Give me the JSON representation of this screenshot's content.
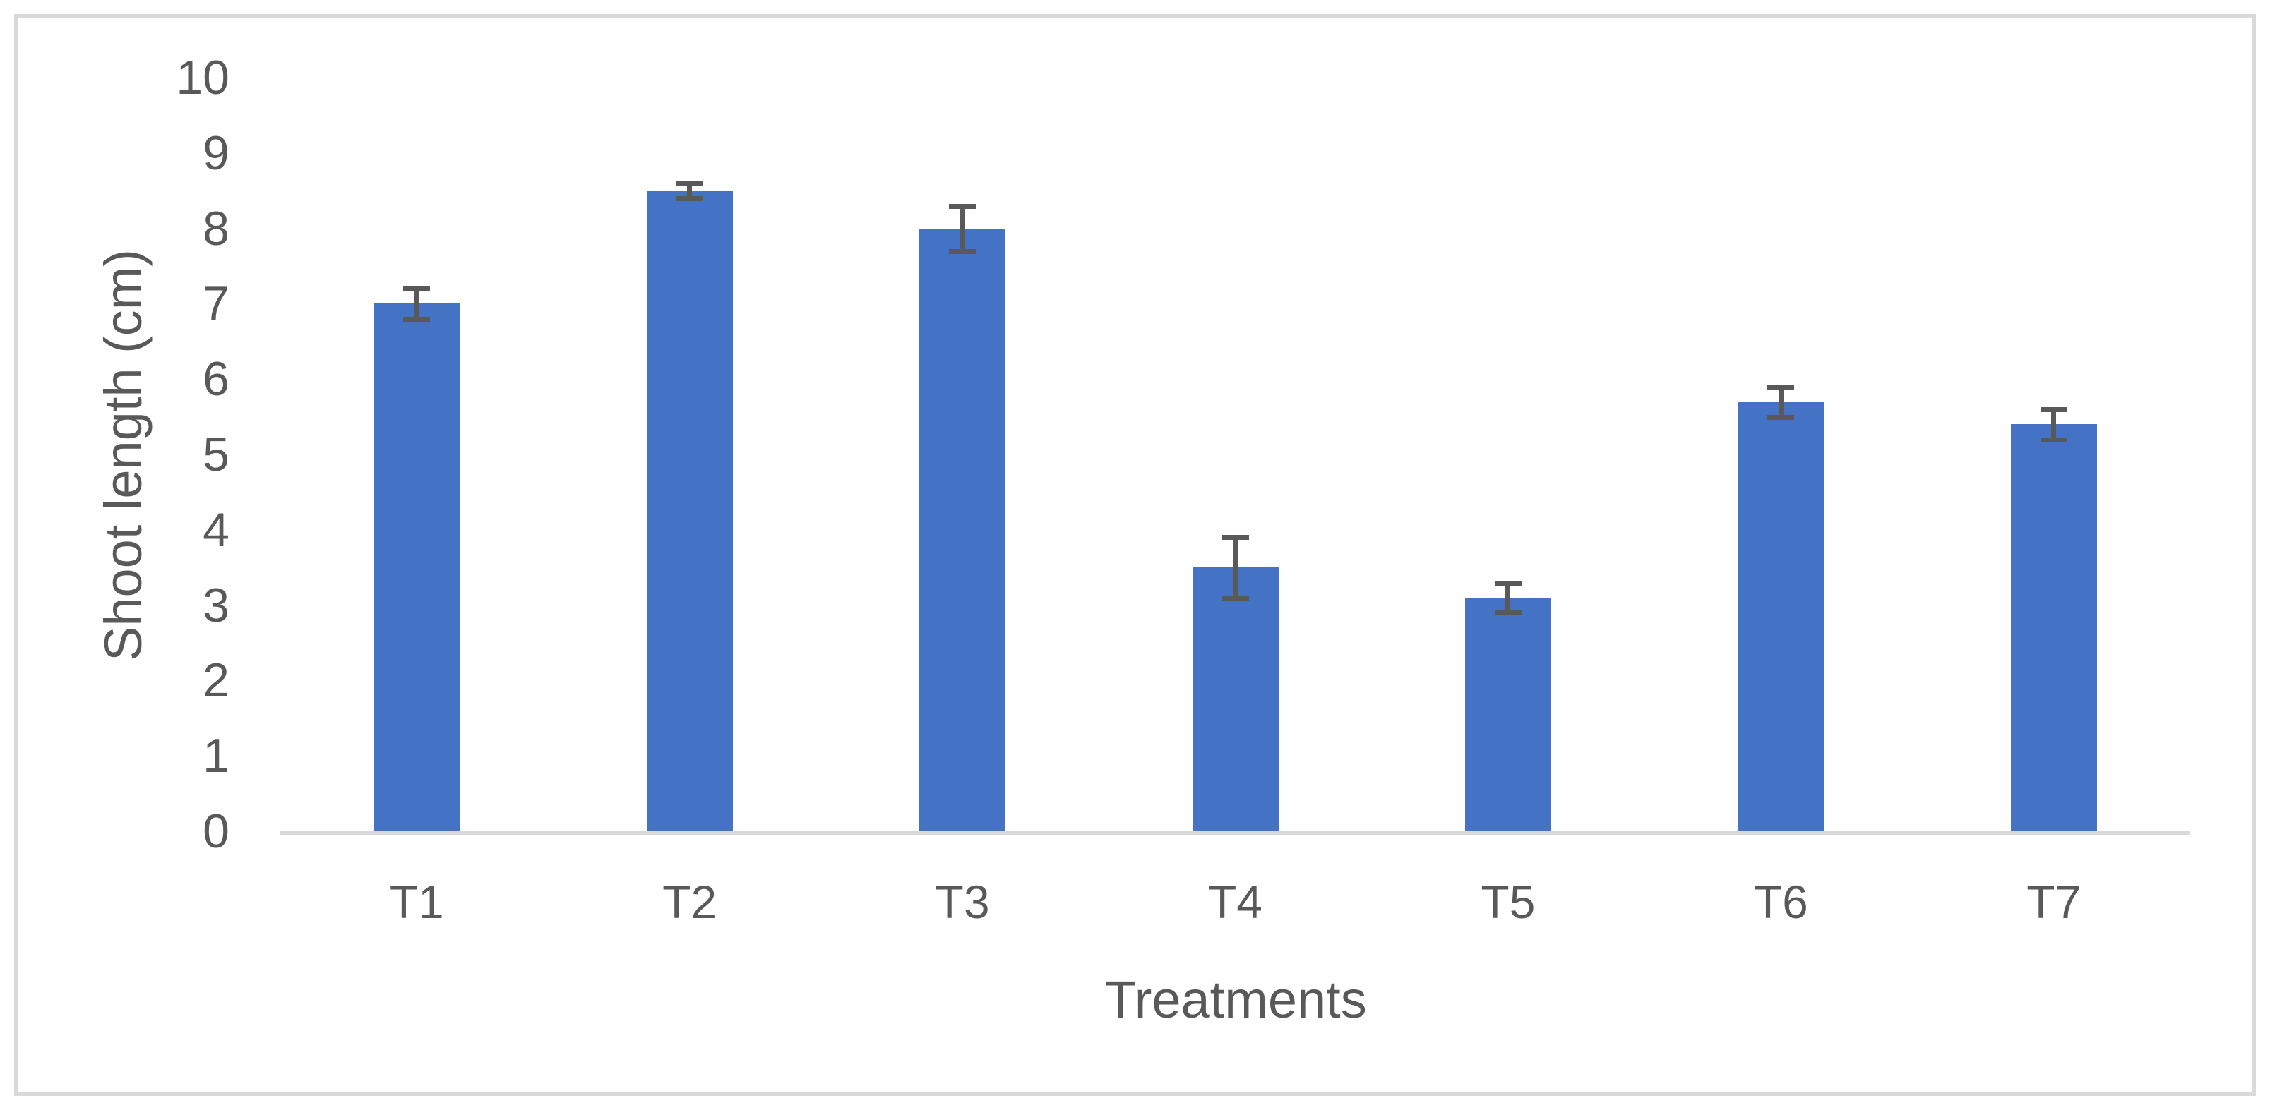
{
  "chart_data": {
    "type": "bar",
    "categories": [
      "T1",
      "T2",
      "T3",
      "T4",
      "T5",
      "T6",
      "T7"
    ],
    "values": [
      7.0,
      8.5,
      8.0,
      3.5,
      3.1,
      5.7,
      5.4
    ],
    "error_bars": [
      0.2,
      0.1,
      0.3,
      0.4,
      0.2,
      0.2,
      0.2
    ],
    "title": "",
    "xlabel": "Treatments",
    "ylabel": "Shoot length (cm)",
    "ylim": [
      0,
      10
    ],
    "ytick_labels": [
      "0",
      "1",
      "2",
      "3",
      "4",
      "5",
      "6",
      "7",
      "8",
      "9",
      "10"
    ],
    "grid": "off",
    "legend": "none",
    "colors": {
      "bar_fill": "#4472C4",
      "error_bar": "#595959",
      "axis_line": "#D9D9D9",
      "frame_border": "#D9D9D9",
      "text": "#595959",
      "background": "#ffffff"
    }
  }
}
